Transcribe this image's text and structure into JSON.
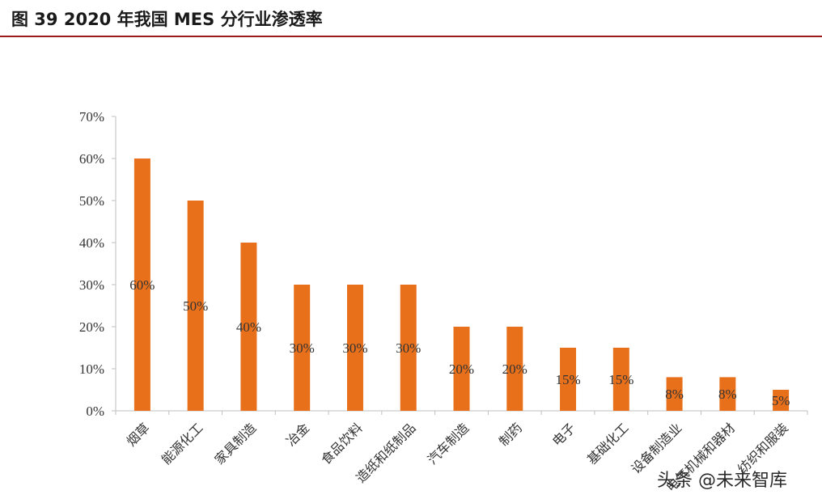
{
  "figure": {
    "title": "图  39 2020 年我国 MES 分行业渗透率"
  },
  "watermark": "头条 @未来智库",
  "chart_data": {
    "type": "bar",
    "categories": [
      "烟草",
      "能源化工",
      "家具制造",
      "冶金",
      "食品饮料",
      "造纸和纸制品",
      "汽车制造",
      "制药",
      "电子",
      "基础化工",
      "设备制造业",
      "电气机械和器材",
      "纺织和服装"
    ],
    "values": [
      60,
      50,
      40,
      30,
      30,
      30,
      20,
      20,
      15,
      15,
      8,
      8,
      5
    ],
    "data_labels": [
      "60%",
      "50%",
      "40%",
      "30%",
      "30%",
      "30%",
      "20%",
      "20%",
      "15%",
      "15%",
      "8%",
      "8%",
      "5%"
    ],
    "yticks": [
      "0%",
      "10%",
      "20%",
      "30%",
      "40%",
      "50%",
      "60%",
      "70%"
    ],
    "ylim": [
      0,
      70
    ],
    "grid": false,
    "legend": "none",
    "colors": {
      "bar": "#E8701A",
      "axis": "#bfbfbf",
      "text": "#333333"
    }
  }
}
